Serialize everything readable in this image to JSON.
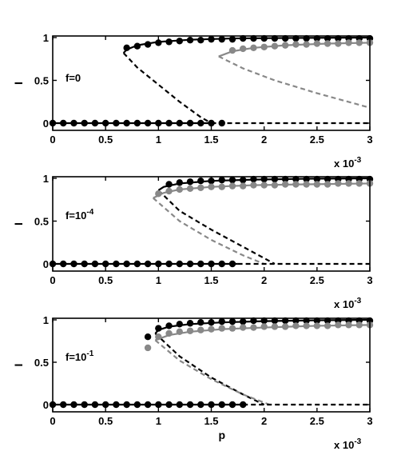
{
  "chart_data": [
    {
      "type": "line",
      "annotation": "f=0",
      "annotation_base": "f=0",
      "annotation_exp": "",
      "xlabel": "",
      "ylabel": "I",
      "xlim": [
        0,
        3
      ],
      "ylim": [
        0,
        1
      ],
      "x_ticks": [
        "0",
        "0.5",
        "1",
        "1.5",
        "2",
        "2.5",
        "3"
      ],
      "y_ticks": [
        "0",
        "0.5",
        "1"
      ],
      "x_scale_label": "x 10",
      "x_scale_exp": "-3",
      "grid": false,
      "colors": {
        "black": "#000000",
        "gray": "#888888"
      },
      "series": [
        {
          "style": "solid",
          "color": "#000000",
          "x": [
            0.67,
            0.7,
            0.8,
            1.0,
            1.3,
            1.7,
            2.2,
            3.0
          ],
          "y": [
            0.82,
            0.86,
            0.91,
            0.95,
            0.975,
            0.99,
            0.995,
            1.0
          ]
        },
        {
          "style": "dashed",
          "color": "#000000",
          "x": [
            0.67,
            0.8,
            1.0,
            1.2,
            1.4,
            1.5
          ],
          "y": [
            0.82,
            0.65,
            0.45,
            0.25,
            0.07,
            0.0
          ]
        },
        {
          "style": "dashed",
          "color": "#000000",
          "x": [
            1.5,
            3.0
          ],
          "y": [
            0.0,
            0.0
          ]
        },
        {
          "style": "solid",
          "color": "#000000",
          "x": [
            0.0,
            1.5
          ],
          "y": [
            0.0,
            0.0
          ]
        },
        {
          "style": "solid",
          "color": "#888888",
          "x": [
            1.57,
            1.7,
            1.9,
            2.2,
            2.6,
            3.0
          ],
          "y": [
            0.78,
            0.84,
            0.88,
            0.91,
            0.93,
            0.94
          ]
        },
        {
          "style": "dashed",
          "color": "#888888",
          "x": [
            1.57,
            1.8,
            2.1,
            2.5,
            3.0
          ],
          "y": [
            0.78,
            0.64,
            0.5,
            0.35,
            0.18
          ]
        },
        {
          "style": "markers",
          "color": "#000000",
          "x": [
            0.7,
            0.8,
            0.9,
            1.0,
            1.1,
            1.2,
            1.3,
            1.4,
            1.5,
            1.6,
            1.7,
            1.8,
            1.9,
            2.0,
            2.1,
            2.2,
            2.3,
            2.4,
            2.5,
            2.6,
            2.7,
            2.8,
            2.9,
            3.0
          ],
          "y": [
            0.88,
            0.9,
            0.92,
            0.94,
            0.95,
            0.96,
            0.97,
            0.97,
            0.98,
            0.98,
            0.98,
            0.99,
            0.99,
            0.99,
            0.99,
            0.99,
            0.99,
            0.99,
            0.99,
            0.99,
            0.99,
            0.99,
            0.99,
            0.99
          ]
        },
        {
          "style": "markers",
          "color": "#000000",
          "x": [
            0.0,
            0.1,
            0.2,
            0.3,
            0.4,
            0.5,
            0.6,
            0.7,
            0.8,
            0.9,
            1.0,
            1.1,
            1.2,
            1.3,
            1.4,
            1.5,
            1.6
          ],
          "y": [
            0,
            0,
            0,
            0,
            0,
            0,
            0,
            0,
            0,
            0,
            0,
            0,
            0,
            0,
            0,
            0,
            0
          ]
        },
        {
          "style": "markers",
          "color": "#888888",
          "x": [
            1.7,
            1.8,
            1.9,
            2.0,
            2.1,
            2.2,
            2.3,
            2.4,
            2.5,
            2.6,
            2.7,
            2.8,
            2.9,
            3.0
          ],
          "y": [
            0.85,
            0.87,
            0.88,
            0.89,
            0.9,
            0.91,
            0.92,
            0.92,
            0.93,
            0.93,
            0.93,
            0.94,
            0.94,
            0.94
          ]
        }
      ]
    },
    {
      "type": "line",
      "annotation": "f=10^-4",
      "annotation_base": "f=10",
      "annotation_exp": "-4",
      "xlabel": "",
      "ylabel": "I",
      "xlim": [
        0,
        3
      ],
      "ylim": [
        0,
        1
      ],
      "x_ticks": [
        "0",
        "0.5",
        "1",
        "1.5",
        "2",
        "2.5",
        "3"
      ],
      "y_ticks": [
        "0",
        "0.5",
        "1"
      ],
      "x_scale_label": "x 10",
      "x_scale_exp": "-3",
      "grid": false,
      "colors": {
        "black": "#000000",
        "gray": "#888888"
      },
      "series": [
        {
          "style": "solid",
          "color": "#000000",
          "x": [
            1.0,
            1.05,
            1.2,
            1.5,
            1.9,
            2.4,
            3.0
          ],
          "y": [
            0.86,
            0.9,
            0.94,
            0.97,
            0.985,
            0.995,
            1.0
          ]
        },
        {
          "style": "dashed",
          "color": "#000000",
          "x": [
            1.0,
            1.2,
            1.5,
            1.8,
            2.1
          ],
          "y": [
            0.86,
            0.62,
            0.4,
            0.2,
            0.0
          ]
        },
        {
          "style": "solid",
          "color": "#888888",
          "x": [
            0.95,
            1.05,
            1.2,
            1.5,
            1.9,
            2.4,
            3.0
          ],
          "y": [
            0.77,
            0.83,
            0.87,
            0.9,
            0.92,
            0.93,
            0.94
          ]
        },
        {
          "style": "dashed",
          "color": "#888888",
          "x": [
            0.95,
            1.2,
            1.5,
            1.8,
            2.0
          ],
          "y": [
            0.77,
            0.5,
            0.28,
            0.1,
            0.0
          ]
        },
        {
          "style": "dashed",
          "color": "#000000",
          "x": [
            1.75,
            3.0
          ],
          "y": [
            0.0,
            0.0
          ]
        },
        {
          "style": "solid",
          "color": "#000000",
          "x": [
            0.0,
            1.75
          ],
          "y": [
            0.0,
            0.0
          ]
        },
        {
          "style": "markers",
          "color": "#000000",
          "x": [
            1.1,
            1.2,
            1.3,
            1.4,
            1.5,
            1.6,
            1.7,
            1.8,
            1.9,
            2.0,
            2.1,
            2.2,
            2.3,
            2.4,
            2.5,
            2.6,
            2.7,
            2.8,
            2.9,
            3.0
          ],
          "y": [
            0.93,
            0.95,
            0.96,
            0.97,
            0.97,
            0.98,
            0.98,
            0.98,
            0.99,
            0.99,
            0.99,
            0.99,
            0.99,
            0.99,
            0.99,
            0.99,
            0.99,
            0.99,
            0.99,
            0.99
          ]
        },
        {
          "style": "markers",
          "color": "#888888",
          "x": [
            1.0,
            1.1,
            1.2,
            1.3,
            1.4,
            1.5,
            1.6,
            1.7,
            1.8,
            1.9,
            2.0,
            2.1,
            2.2,
            2.3,
            2.4,
            2.5,
            2.6,
            2.7,
            2.8,
            2.9,
            3.0
          ],
          "y": [
            0.82,
            0.85,
            0.87,
            0.88,
            0.89,
            0.9,
            0.9,
            0.91,
            0.91,
            0.92,
            0.92,
            0.92,
            0.93,
            0.93,
            0.93,
            0.93,
            0.93,
            0.94,
            0.94,
            0.94,
            0.94
          ]
        },
        {
          "style": "markers",
          "color": "#000000",
          "x": [
            0.0,
            0.1,
            0.2,
            0.3,
            0.4,
            0.5,
            0.6,
            0.7,
            0.8,
            0.9,
            1.0,
            1.1,
            1.2,
            1.3,
            1.4,
            1.5,
            1.6,
            1.7
          ],
          "y": [
            0,
            0,
            0,
            0,
            0,
            0,
            0,
            0,
            0,
            0,
            0,
            0,
            0,
            0,
            0,
            0,
            0,
            0
          ]
        }
      ]
    },
    {
      "type": "line",
      "annotation": "f=10^-1",
      "annotation_base": "f=10",
      "annotation_exp": "-1",
      "xlabel": "p",
      "ylabel": "I",
      "xlim": [
        0,
        3
      ],
      "ylim": [
        0,
        1
      ],
      "x_ticks": [
        "0",
        "0.5",
        "1",
        "1.5",
        "2",
        "2.5",
        "3"
      ],
      "y_ticks": [
        "0",
        "0.5",
        "1"
      ],
      "x_scale_label": "x 10",
      "x_scale_exp": "-3",
      "grid": false,
      "colors": {
        "black": "#000000",
        "gray": "#888888"
      },
      "series": [
        {
          "style": "solid",
          "color": "#000000",
          "x": [
            0.97,
            1.0,
            1.1,
            1.3,
            1.6,
            2.0,
            2.5,
            3.0
          ],
          "y": [
            0.84,
            0.88,
            0.92,
            0.95,
            0.97,
            0.985,
            0.995,
            1.0
          ]
        },
        {
          "style": "dashed",
          "color": "#000000",
          "x": [
            0.97,
            1.2,
            1.5,
            1.8,
            2.0
          ],
          "y": [
            0.84,
            0.57,
            0.32,
            0.12,
            0.0
          ]
        },
        {
          "style": "solid",
          "color": "#888888",
          "x": [
            0.97,
            1.1,
            1.3,
            1.6,
            2.0,
            2.5,
            3.0
          ],
          "y": [
            0.76,
            0.82,
            0.86,
            0.89,
            0.91,
            0.93,
            0.94
          ]
        },
        {
          "style": "dashed",
          "color": "#888888",
          "x": [
            0.97,
            1.2,
            1.5,
            1.8,
            2.05
          ],
          "y": [
            0.76,
            0.52,
            0.3,
            0.12,
            0.0
          ]
        },
        {
          "style": "dashed",
          "color": "#000000",
          "x": [
            1.8,
            3.0
          ],
          "y": [
            0.0,
            0.0
          ]
        },
        {
          "style": "solid",
          "color": "#000000",
          "x": [
            0.0,
            1.8
          ],
          "y": [
            0.0,
            0.0
          ]
        },
        {
          "style": "markers",
          "color": "#000000",
          "x": [
            0.9,
            1.0,
            1.1,
            1.2,
            1.3,
            1.4,
            1.5,
            1.6,
            1.7,
            1.8,
            1.9,
            2.0,
            2.1,
            2.2,
            2.3,
            2.4,
            2.5,
            2.6,
            2.7,
            2.8,
            2.9,
            3.0
          ],
          "y": [
            0.8,
            0.9,
            0.93,
            0.95,
            0.96,
            0.97,
            0.97,
            0.98,
            0.98,
            0.98,
            0.99,
            0.99,
            0.99,
            0.99,
            0.99,
            0.99,
            0.99,
            0.99,
            0.99,
            0.99,
            0.99,
            0.99
          ]
        },
        {
          "style": "markers",
          "color": "#888888",
          "x": [
            0.9,
            1.0,
            1.1,
            1.2,
            1.3,
            1.4,
            1.5,
            1.6,
            1.7,
            1.8,
            1.9,
            2.0,
            2.1,
            2.2,
            2.3,
            2.4,
            2.5,
            2.6,
            2.7,
            2.8,
            2.9,
            3.0
          ],
          "y": [
            0.67,
            0.8,
            0.84,
            0.86,
            0.87,
            0.88,
            0.89,
            0.9,
            0.9,
            0.91,
            0.91,
            0.92,
            0.92,
            0.92,
            0.93,
            0.93,
            0.93,
            0.93,
            0.94,
            0.94,
            0.94,
            0.94
          ]
        },
        {
          "style": "markers",
          "color": "#000000",
          "x": [
            0.0,
            0.1,
            0.2,
            0.3,
            0.4,
            0.5,
            0.6,
            0.7,
            0.8,
            0.9,
            1.0,
            1.1,
            1.2,
            1.3,
            1.4,
            1.5,
            1.6,
            1.7,
            1.8
          ],
          "y": [
            0,
            0,
            0,
            0,
            0,
            0,
            0,
            0,
            0,
            0,
            0,
            0,
            0,
            0,
            0,
            0,
            0,
            0,
            0
          ]
        }
      ]
    }
  ]
}
